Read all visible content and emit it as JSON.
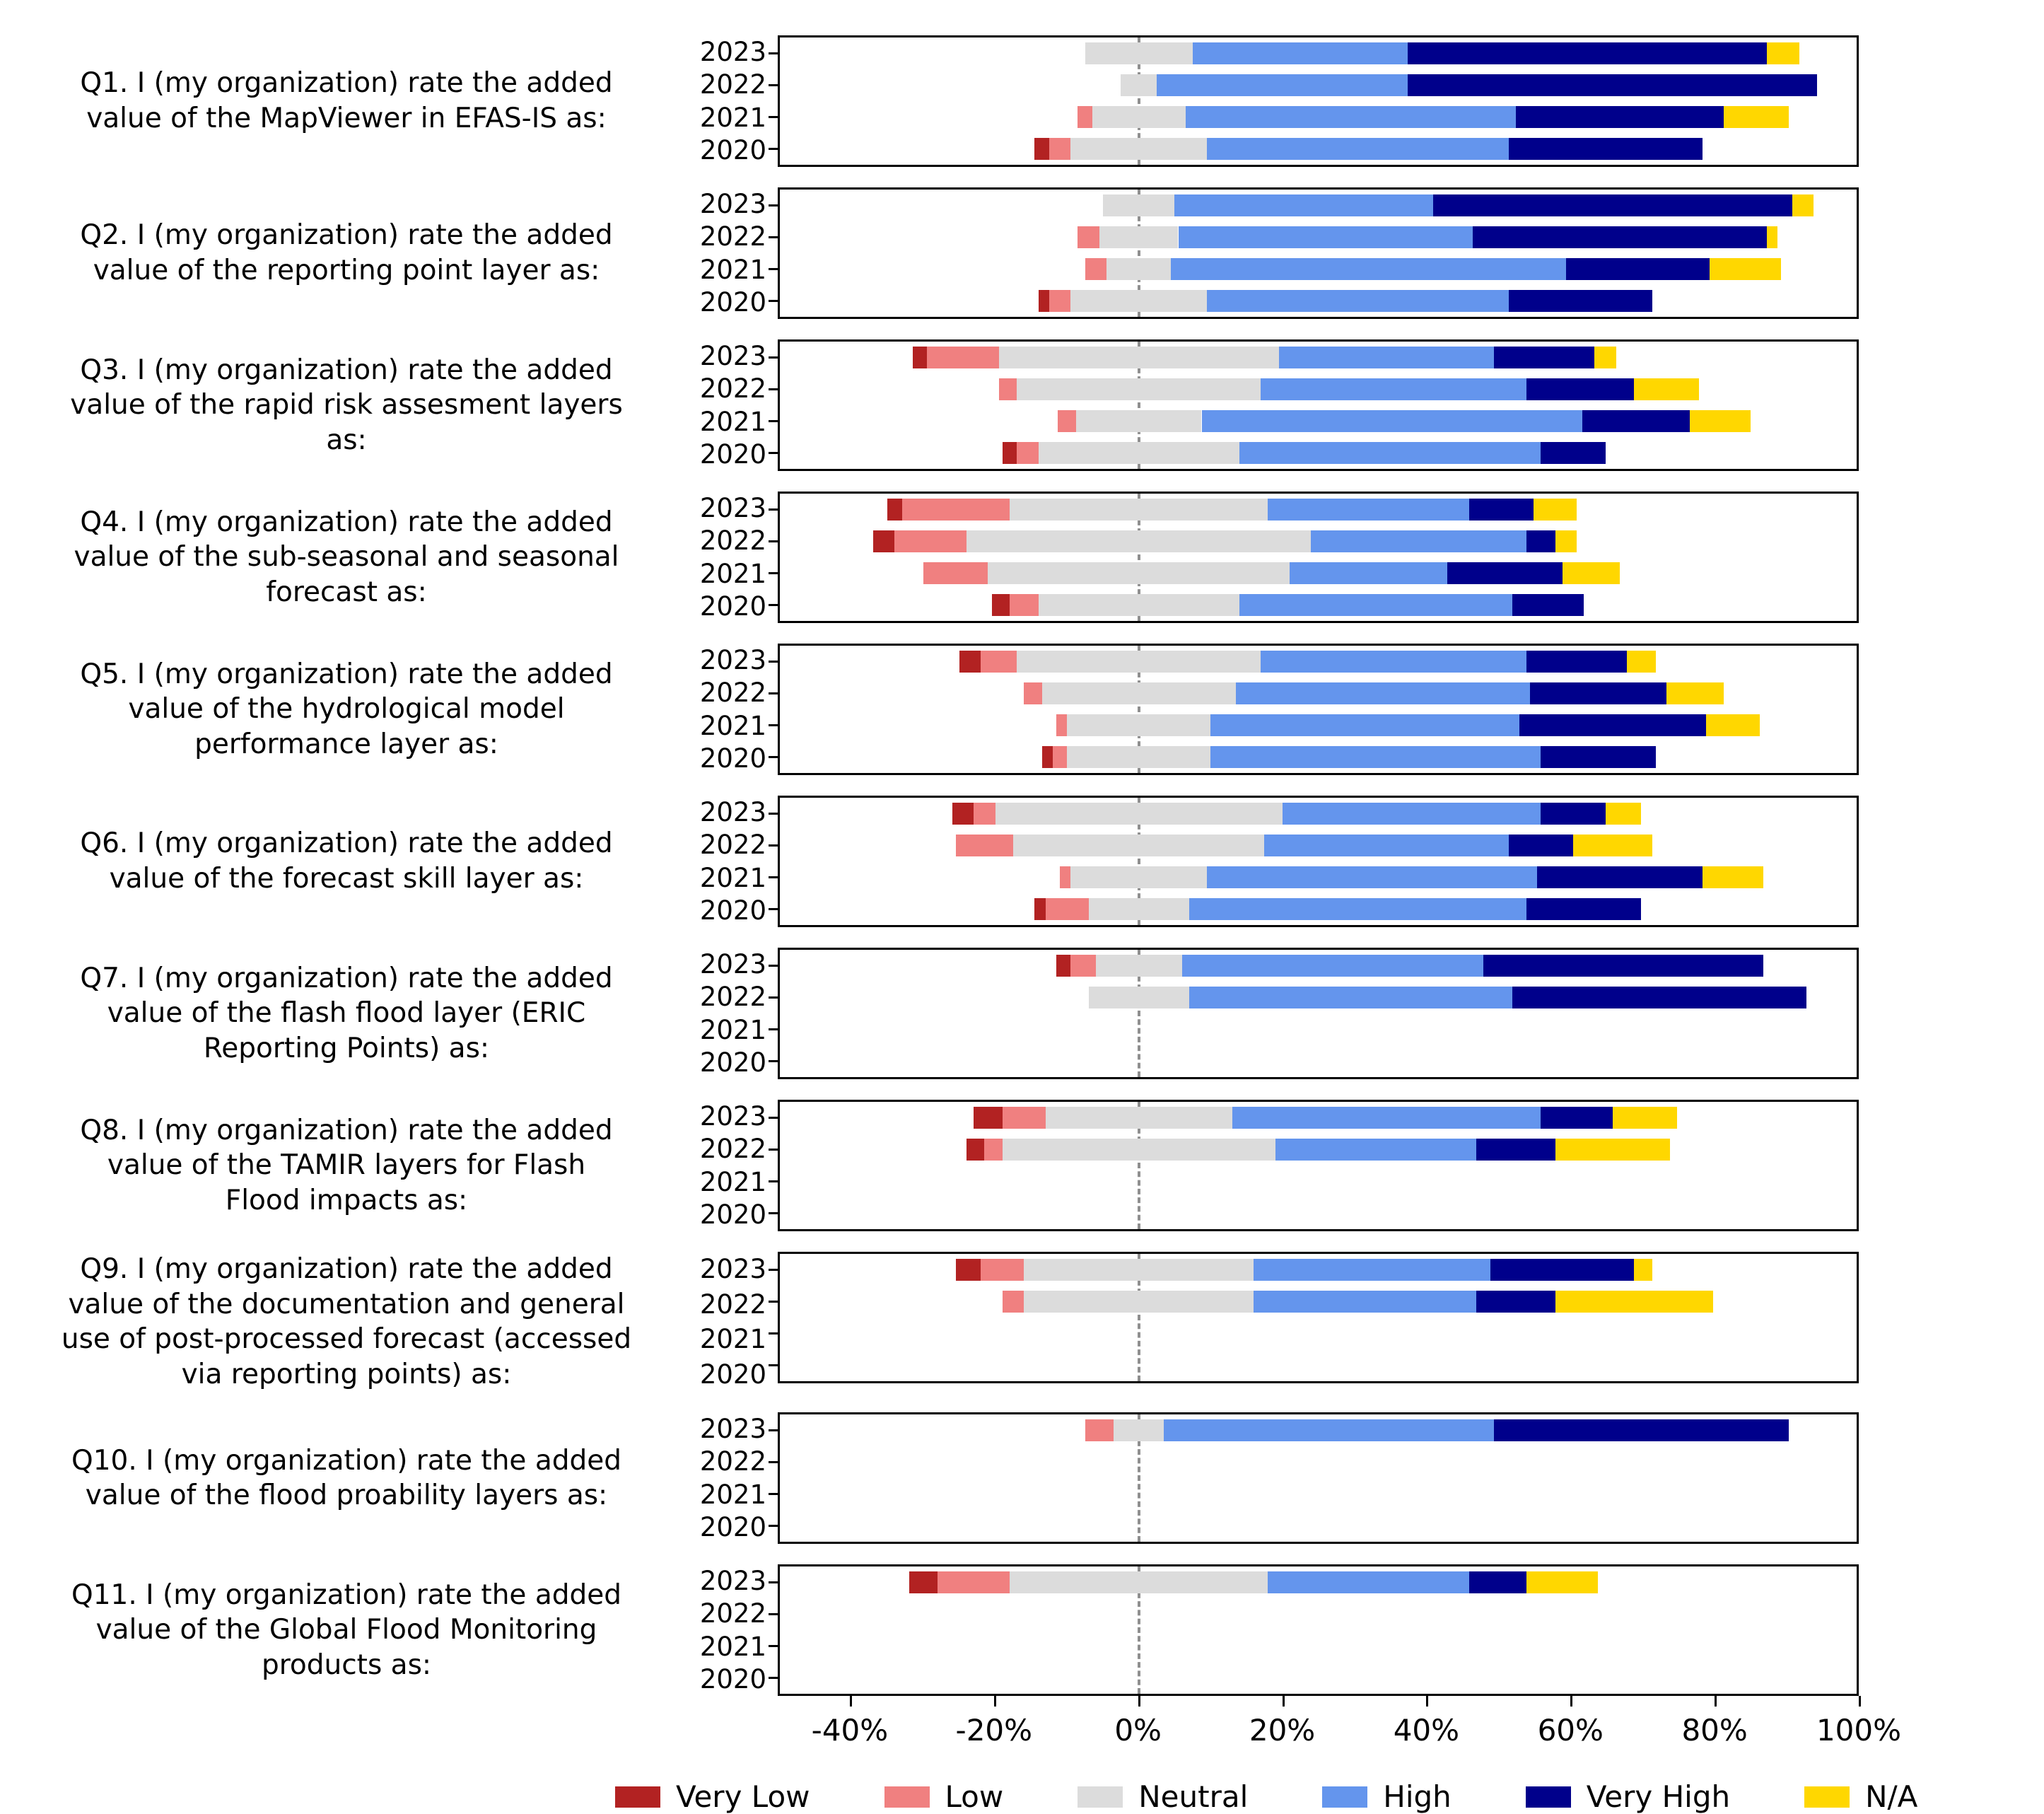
{
  "chart_data": {
    "type": "bar",
    "variant": "diverging-stacked-likert-survey",
    "title": "",
    "xlabel": "",
    "ylabel": "",
    "unit": "percent",
    "x_range": [
      -50,
      100
    ],
    "x_tick_values": [
      -40,
      -20,
      0,
      20,
      40,
      60,
      80,
      100
    ],
    "x_tick_labels": [
      "-40%",
      "-20%",
      "0%",
      "20%",
      "40%",
      "60%",
      "80%",
      "100%"
    ],
    "zero_line_value": 0,
    "grid": false,
    "legend_position": "bottom",
    "stack_note": "Each row lists approximate percent widths [Very Low, Low, Neutral, High, Very High, N/A]; bars are offset so half of Neutral lies left of 0%.",
    "likert_levels": [
      "Very Low",
      "Low",
      "Neutral",
      "High",
      "Very High",
      "N/A"
    ],
    "colors": [
      "#B22222",
      "#F08080",
      "#DCDCDC",
      "#6495ED",
      "#00008B",
      "#FFD700"
    ],
    "years": [
      "2023",
      "2022",
      "2021",
      "2020"
    ],
    "questions": [
      {
        "id": "Q1",
        "label": "Q1. I (my organization) rate the added\nvalue of the MapViewer in EFAS-IS as:",
        "rows": [
          [
            0,
            0,
            15,
            30,
            50,
            4.5
          ],
          [
            0,
            0,
            5,
            35,
            57,
            0
          ],
          [
            0,
            2,
            13,
            46,
            29,
            9
          ],
          [
            2,
            3,
            19,
            42,
            27,
            0
          ]
        ]
      },
      {
        "id": "Q2",
        "label": "Q2. I (my organization) rate the added\nvalue of the reporting point layer as:",
        "rows": [
          [
            0,
            0,
            10,
            36,
            50,
            3
          ],
          [
            0,
            3,
            11,
            41,
            41,
            1.5
          ],
          [
            0,
            3,
            9,
            55,
            20,
            10
          ],
          [
            1.5,
            3,
            19,
            42,
            20,
            0
          ]
        ]
      },
      {
        "id": "Q3",
        "label": "Q3. I (my organization) rate the added\nvalue of the rapid risk assesment layers\nas:",
        "rows": [
          [
            2,
            10,
            39,
            30,
            14,
            3
          ],
          [
            0,
            2.5,
            34,
            37,
            15,
            9
          ],
          [
            0,
            2.5,
            17.5,
            53,
            15,
            8.5
          ],
          [
            2,
            3,
            28,
            42,
            9,
            0
          ]
        ]
      },
      {
        "id": "Q4",
        "label": "Q4. I (my organization) rate the added\nvalue of the sub-seasonal and seasonal\nforecast as:",
        "rows": [
          [
            2,
            15,
            36,
            28,
            9,
            6
          ],
          [
            3,
            10,
            48,
            30,
            4,
            3
          ],
          [
            0,
            9,
            42,
            22,
            16,
            8
          ],
          [
            2.5,
            4,
            28,
            38,
            10,
            0
          ]
        ]
      },
      {
        "id": "Q5",
        "label": "Q5. I (my organization) rate the added\nvalue of the hydrological model\nperformance layer as:",
        "rows": [
          [
            3,
            5,
            34,
            37,
            14,
            4
          ],
          [
            0,
            2.5,
            27,
            41,
            19,
            8
          ],
          [
            0,
            1.5,
            20,
            43,
            26,
            7.5
          ],
          [
            1.5,
            2,
            20,
            46,
            16,
            0
          ]
        ]
      },
      {
        "id": "Q6",
        "label": "Q6. I (my organization) rate the added\nvalue of the forecast skill layer as:",
        "rows": [
          [
            3,
            3,
            40,
            36,
            9,
            5
          ],
          [
            0,
            8,
            35,
            34,
            9,
            11
          ],
          [
            0,
            1.5,
            19,
            46,
            23,
            8.5
          ],
          [
            1.5,
            6,
            14,
            47,
            16,
            0
          ]
        ]
      },
      {
        "id": "Q7",
        "label": "Q7. I (my organization) rate the added\nvalue of the flash flood layer (ERIC\nReporting Points) as:",
        "rows": [
          [
            2,
            3.5,
            12,
            42,
            39,
            0
          ],
          [
            0,
            0,
            14,
            45,
            41,
            0
          ],
          [
            0,
            0,
            0,
            0,
            0,
            0
          ],
          [
            0,
            0,
            0,
            0,
            0,
            0
          ]
        ]
      },
      {
        "id": "Q8",
        "label": "Q8. I (my organization) rate the added\nvalue of the TAMIR layers for Flash\nFlood impacts as:",
        "rows": [
          [
            4,
            6,
            26,
            43,
            10,
            9
          ],
          [
            2.5,
            2.5,
            38,
            28,
            11,
            16
          ],
          [
            0,
            0,
            0,
            0,
            0,
            0
          ],
          [
            0,
            0,
            0,
            0,
            0,
            0
          ]
        ]
      },
      {
        "id": "Q9",
        "label": "Q9. I (my organization) rate the added\nvalue of the documentation and general\nuse of post-processed forecast (accessed\nvia reporting points) as:",
        "rows": [
          [
            3.5,
            6,
            32,
            33,
            20,
            2.5
          ],
          [
            0,
            3,
            32,
            31,
            11,
            22
          ],
          [
            0,
            0,
            0,
            0,
            0,
            0
          ],
          [
            0,
            0,
            0,
            0,
            0,
            0
          ]
        ]
      },
      {
        "id": "Q10",
        "label": "Q10. I (my organization) rate the added\nvalue of the flood proability layers as:",
        "rows": [
          [
            0,
            4,
            7,
            46,
            41,
            0
          ],
          [
            0,
            0,
            0,
            0,
            0,
            0
          ],
          [
            0,
            0,
            0,
            0,
            0,
            0
          ],
          [
            0,
            0,
            0,
            0,
            0,
            0
          ]
        ]
      },
      {
        "id": "Q11",
        "label": "Q11. I (my organization) rate the added\nvalue of the Global Flood Monitoring\nproducts as:",
        "rows": [
          [
            4,
            10,
            36,
            28,
            8,
            10
          ],
          [
            0,
            0,
            0,
            0,
            0,
            0
          ],
          [
            0,
            0,
            0,
            0,
            0,
            0
          ],
          [
            0,
            0,
            0,
            0,
            0,
            0
          ]
        ]
      }
    ]
  }
}
